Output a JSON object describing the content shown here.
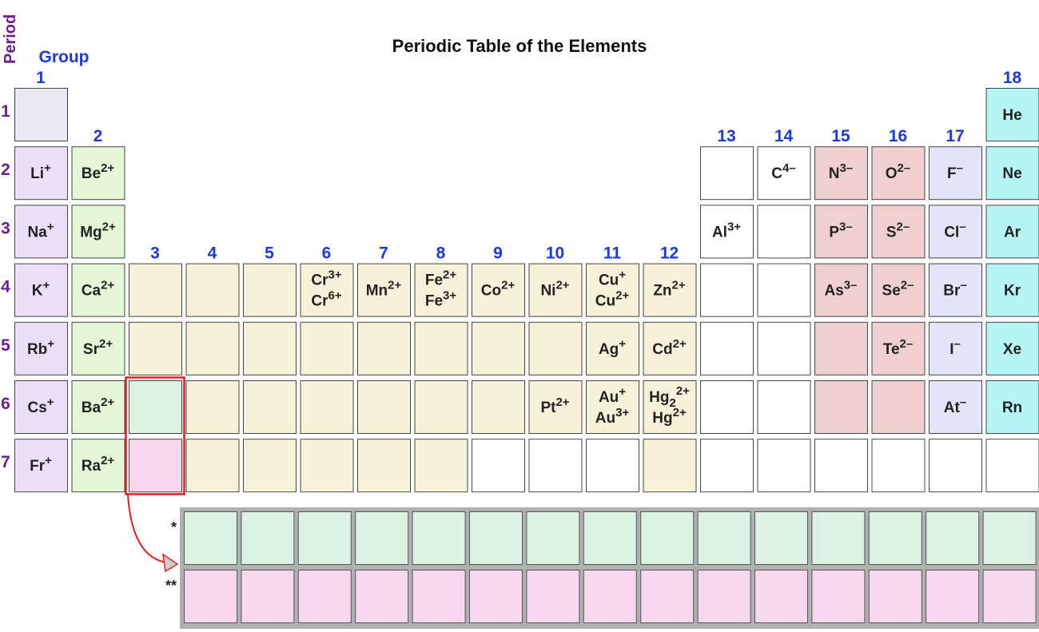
{
  "title": "Periodic Table of the Elements",
  "period_label": "Period",
  "group_label": "Group",
  "groups": [
    1,
    2,
    3,
    4,
    5,
    6,
    7,
    8,
    9,
    10,
    11,
    12,
    13,
    14,
    15,
    16,
    17,
    18
  ],
  "periods": [
    1,
    2,
    3,
    4,
    5,
    6,
    7
  ],
  "series_markers": [
    "*",
    "**"
  ],
  "cells": [
    [
      null,
      null,
      null,
      null,
      null,
      null,
      null,
      null,
      null,
      null,
      null,
      null,
      null,
      null,
      null,
      null,
      null,
      [
        {
          "base": "He"
        }
      ]
    ],
    [
      [
        {
          "base": "Li",
          "charge": "+"
        }
      ],
      [
        {
          "base": "Be",
          "charge": "2+"
        }
      ],
      null,
      null,
      null,
      null,
      null,
      null,
      null,
      null,
      null,
      null,
      null,
      [
        {
          "base": "C",
          "charge": "4–"
        }
      ],
      [
        {
          "base": "N",
          "charge": "3–"
        }
      ],
      [
        {
          "base": "O",
          "charge": "2–"
        }
      ],
      [
        {
          "base": "F",
          "charge": "–"
        }
      ],
      [
        {
          "base": "Ne"
        }
      ]
    ],
    [
      [
        {
          "base": "Na",
          "charge": "+"
        }
      ],
      [
        {
          "base": "Mg",
          "charge": "2+"
        }
      ],
      null,
      null,
      null,
      null,
      null,
      null,
      null,
      null,
      null,
      null,
      [
        {
          "base": "Al",
          "charge": "3+"
        }
      ],
      null,
      [
        {
          "base": "P",
          "charge": "3–"
        }
      ],
      [
        {
          "base": "S",
          "charge": "2–"
        }
      ],
      [
        {
          "base": "Cl",
          "charge": "–"
        }
      ],
      [
        {
          "base": "Ar"
        }
      ]
    ],
    [
      [
        {
          "base": "K",
          "charge": "+"
        }
      ],
      [
        {
          "base": "Ca",
          "charge": "2+"
        }
      ],
      null,
      null,
      null,
      [
        {
          "base": "Cr",
          "charge": "3+"
        },
        {
          "base": "Cr",
          "charge": "6+"
        }
      ],
      [
        {
          "base": "Mn",
          "charge": "2+"
        }
      ],
      [
        {
          "base": "Fe",
          "charge": "2+"
        },
        {
          "base": "Fe",
          "charge": "3+"
        }
      ],
      [
        {
          "base": "Co",
          "charge": "2+"
        }
      ],
      [
        {
          "base": "Ni",
          "charge": "2+"
        }
      ],
      [
        {
          "base": "Cu",
          "charge": "+"
        },
        {
          "base": "Cu",
          "charge": "2+"
        }
      ],
      [
        {
          "base": "Zn",
          "charge": "2+"
        }
      ],
      null,
      null,
      [
        {
          "base": "As",
          "charge": "3–"
        }
      ],
      [
        {
          "base": "Se",
          "charge": "2–"
        }
      ],
      [
        {
          "base": "Br",
          "charge": "–"
        }
      ],
      [
        {
          "base": "Kr"
        }
      ]
    ],
    [
      [
        {
          "base": "Rb",
          "charge": "+"
        }
      ],
      [
        {
          "base": "Sr",
          "charge": "2+"
        }
      ],
      null,
      null,
      null,
      null,
      null,
      null,
      null,
      null,
      [
        {
          "base": "Ag",
          "charge": "+"
        }
      ],
      [
        {
          "base": "Cd",
          "charge": "2+"
        }
      ],
      null,
      null,
      null,
      [
        {
          "base": "Te",
          "charge": "2–"
        }
      ],
      [
        {
          "base": "I",
          "charge": "–"
        }
      ],
      [
        {
          "base": "Xe"
        }
      ]
    ],
    [
      [
        {
          "base": "Cs",
          "charge": "+"
        }
      ],
      [
        {
          "base": "Ba",
          "charge": "2+"
        }
      ],
      null,
      null,
      null,
      null,
      null,
      null,
      null,
      [
        {
          "base": "Pt",
          "charge": "2+"
        }
      ],
      [
        {
          "base": "Au",
          "charge": "+"
        },
        {
          "base": "Au",
          "charge": "3+"
        }
      ],
      [
        {
          "base": "Hg",
          "sub": "2",
          "charge": "2+"
        },
        {
          "base": "Hg",
          "charge": "2+"
        }
      ],
      null,
      null,
      null,
      null,
      [
        {
          "base": "At",
          "charge": "–"
        }
      ],
      [
        {
          "base": "Rn"
        }
      ]
    ],
    [
      [
        {
          "base": "Fr",
          "charge": "+"
        }
      ],
      [
        {
          "base": "Ra",
          "charge": "2+"
        }
      ],
      null,
      null,
      null,
      null,
      null,
      null,
      null,
      null,
      null,
      null,
      null,
      null,
      null,
      null,
      null,
      null
    ]
  ]
}
